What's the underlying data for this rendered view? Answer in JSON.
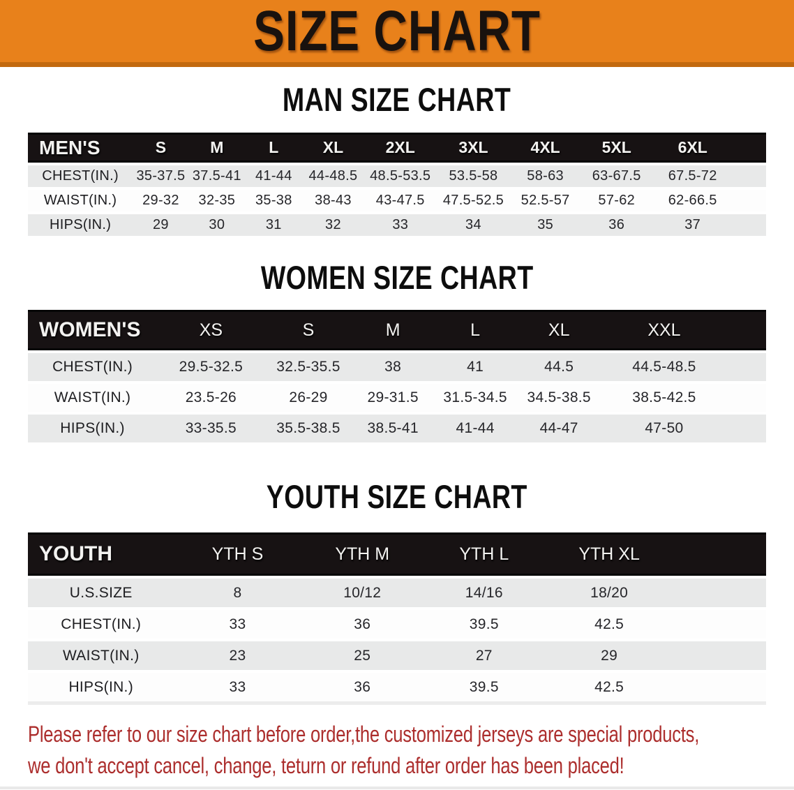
{
  "banner": {
    "title": "SIZE CHART"
  },
  "colors": {
    "banner_bg": "#E8811B",
    "banner_edge": "#C2690F",
    "header_bar": "#171213",
    "row_stripe": "#E8E9E9",
    "disclaimer_red": "#AC2E2D"
  },
  "sections": [
    {
      "heading": "MAN SIZE CHART",
      "table": {
        "header": {
          "label": "MEN'S",
          "columns": [
            "S",
            "M",
            "L",
            "XL",
            "2XL",
            "3XL",
            "4XL",
            "5XL",
            "6XL"
          ]
        },
        "rows": [
          {
            "label": "CHEST(IN.)",
            "values": [
              "35-37.5",
              "37.5-41",
              "41-44",
              "44-48.5",
              "48.5-53.5",
              "53.5-58",
              "58-63",
              "63-67.5",
              "67.5-72"
            ]
          },
          {
            "label": "WAIST(IN.)",
            "values": [
              "29-32",
              "32-35",
              "35-38",
              "38-43",
              "43-47.5",
              "47.5-52.5",
              "52.5-57",
              "57-62",
              "62-66.5"
            ]
          },
          {
            "label": "HIPS(IN.)",
            "values": [
              "29",
              "30",
              "31",
              "32",
              "33",
              "34",
              "35",
              "36",
              "37"
            ]
          }
        ]
      }
    },
    {
      "heading": "WOMEN SIZE CHART",
      "table": {
        "header": {
          "label": "WOMEN'S",
          "columns": [
            "XS",
            "S",
            "M",
            "L",
            "XL",
            "XXL"
          ]
        },
        "rows": [
          {
            "label": "CHEST(IN.)",
            "values": [
              "29.5-32.5",
              "32.5-35.5",
              "38",
              "41",
              "44.5",
              "44.5-48.5"
            ]
          },
          {
            "label": "WAIST(IN.)",
            "values": [
              "23.5-26",
              "26-29",
              "29-31.5",
              "31.5-34.5",
              "34.5-38.5",
              "38.5-42.5"
            ]
          },
          {
            "label": "HIPS(IN.)",
            "values": [
              "33-35.5",
              "35.5-38.5",
              "38.5-41",
              "41-44",
              "44-47",
              "47-50"
            ]
          }
        ]
      }
    },
    {
      "heading": "YOUTH SIZE CHART",
      "table": {
        "header": {
          "label": "YOUTH",
          "columns": [
            "YTH S",
            "YTH M",
            "YTH L",
            "YTH XL"
          ]
        },
        "rows": [
          {
            "label": "U.S.SIZE",
            "values": [
              "8",
              "10/12",
              "14/16",
              "18/20"
            ]
          },
          {
            "label": "CHEST(IN.)",
            "values": [
              "33",
              "36",
              "39.5",
              "42.5"
            ]
          },
          {
            "label": "WAIST(IN.)",
            "values": [
              "23",
              "25",
              "27",
              "29"
            ]
          },
          {
            "label": "HIPS(IN.)",
            "values": [
              "33",
              "36",
              "39.5",
              "42.5"
            ]
          }
        ]
      }
    }
  ],
  "disclaimer": {
    "line1": "Please refer to our size chart before order,the customized jerseys are special products,",
    "line2": "we don't accept cancel, change, teturn or refund after order has been placed!"
  }
}
